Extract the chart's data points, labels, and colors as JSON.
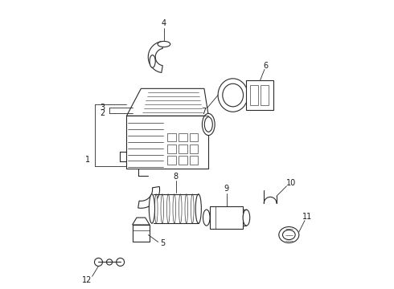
{
  "bg_color": "#ffffff",
  "line_color": "#2a2a2a",
  "text_color": "#1a1a1a",
  "figsize": [
    4.9,
    3.6
  ],
  "dpi": 100,
  "parts": [
    {
      "id": 1,
      "label": "1"
    },
    {
      "id": 2,
      "label": "2"
    },
    {
      "id": 3,
      "label": "3"
    },
    {
      "id": 4,
      "label": "4"
    },
    {
      "id": 5,
      "label": "5"
    },
    {
      "id": 6,
      "label": "6"
    },
    {
      "id": 7,
      "label": "7"
    },
    {
      "id": 8,
      "label": "8"
    },
    {
      "id": 9,
      "label": "9"
    },
    {
      "id": 10,
      "label": "10"
    },
    {
      "id": 11,
      "label": "11"
    },
    {
      "id": 12,
      "label": "12"
    }
  ]
}
